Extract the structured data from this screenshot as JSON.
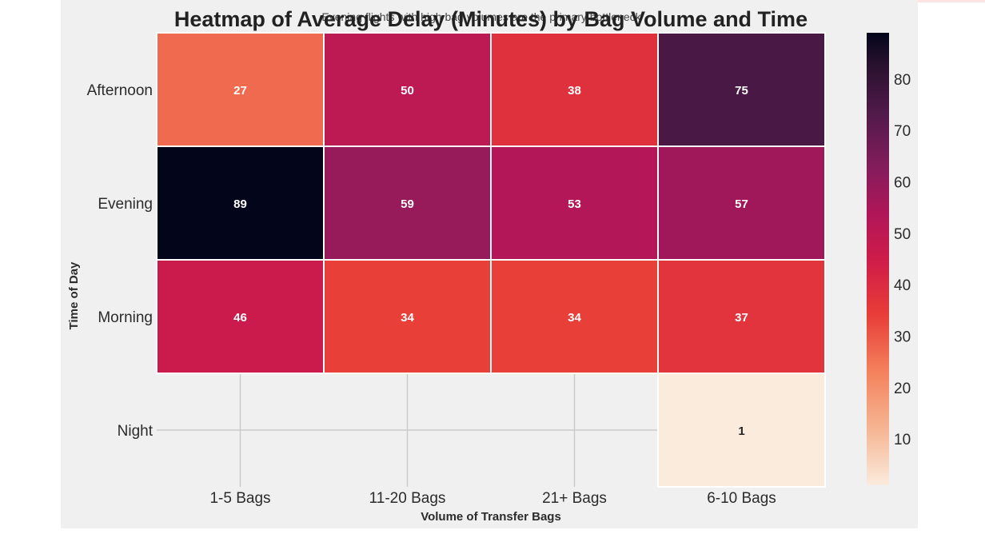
{
  "chart_data": {
    "type": "heatmap",
    "title": "Heatmap of Average Delay (Minutes) by Bag Volume and Time",
    "subtitle": "Evening flights with high bag volumes are the primary bottleneck",
    "xlabel": "Volume of Transfer Bags",
    "ylabel": "Time of Day",
    "x_categories": [
      "1-5 Bags",
      "11-20 Bags",
      "21+ Bags",
      "6-10 Bags"
    ],
    "y_categories": [
      "Afternoon",
      "Evening",
      "Morning",
      "Night"
    ],
    "values": [
      [
        27,
        50,
        38,
        75
      ],
      [
        89,
        59,
        53,
        57
      ],
      [
        46,
        34,
        34,
        37
      ],
      [
        null,
        null,
        null,
        1
      ]
    ],
    "colorbar": {
      "min": 1,
      "max": 89,
      "ticks": [
        "10",
        "20",
        "30",
        "40",
        "50",
        "60",
        "70",
        "80"
      ],
      "colormap": "rocket_r"
    },
    "grid": true
  }
}
